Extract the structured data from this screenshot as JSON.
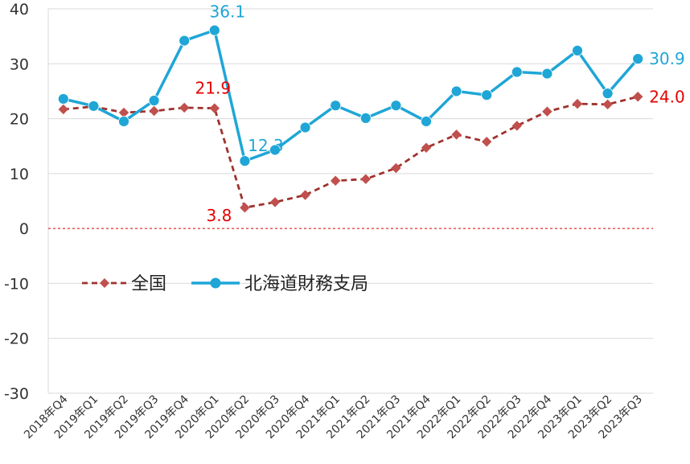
{
  "chart_data": {
    "type": "line",
    "title": "",
    "xlabel": "",
    "ylabel": "",
    "ylim": [
      -30,
      40
    ],
    "yticks": [
      40,
      30,
      20,
      10,
      0,
      -10,
      -20,
      -30
    ],
    "grid": "horizontal",
    "legend_placement": "center-left",
    "categories": [
      "2018年Q4",
      "2019年Q1",
      "2019年Q2",
      "2019年Q3",
      "2019年Q4",
      "2020年Q1",
      "2020年Q2",
      "2020年Q3",
      "2020年Q4",
      "2021年Q1",
      "2021年Q2",
      "2021年Q3",
      "2021年Q4",
      "2022年Q1",
      "2022年Q2",
      "2022年Q3",
      "2022年Q4",
      "2023年Q1",
      "2023年Q2",
      "2023年Q3"
    ],
    "series": [
      {
        "name": "全国",
        "color": "#a0332f",
        "marker": "diamond",
        "line": "dashed",
        "values": [
          21.7,
          22.2,
          21.1,
          21.4,
          22.0,
          21.9,
          3.8,
          4.8,
          6.1,
          8.7,
          9.0,
          11.0,
          14.7,
          17.1,
          15.8,
          18.7,
          21.3,
          22.7,
          22.6,
          24.0
        ]
      },
      {
        "name": "北海道財務支局",
        "color": "#1fa6d6",
        "marker": "circle",
        "line": "solid",
        "values": [
          23.6,
          22.3,
          19.5,
          23.3,
          34.2,
          36.1,
          12.3,
          14.3,
          18.4,
          22.4,
          20.1,
          22.4,
          19.5,
          25.0,
          24.3,
          28.5,
          28.2,
          32.4,
          24.6,
          30.9
        ]
      }
    ],
    "data_labels": [
      {
        "series": 0,
        "index": 5,
        "text": "21.9"
      },
      {
        "series": 0,
        "index": 6,
        "text": "3.8"
      },
      {
        "series": 0,
        "index": 19,
        "text": "24.0"
      },
      {
        "series": 1,
        "index": 5,
        "text": "36.1"
      },
      {
        "series": 1,
        "index": 6,
        "text": "12.3"
      },
      {
        "series": 1,
        "index": 19,
        "text": "30.9"
      }
    ],
    "zero_line_color": "#e03030"
  }
}
